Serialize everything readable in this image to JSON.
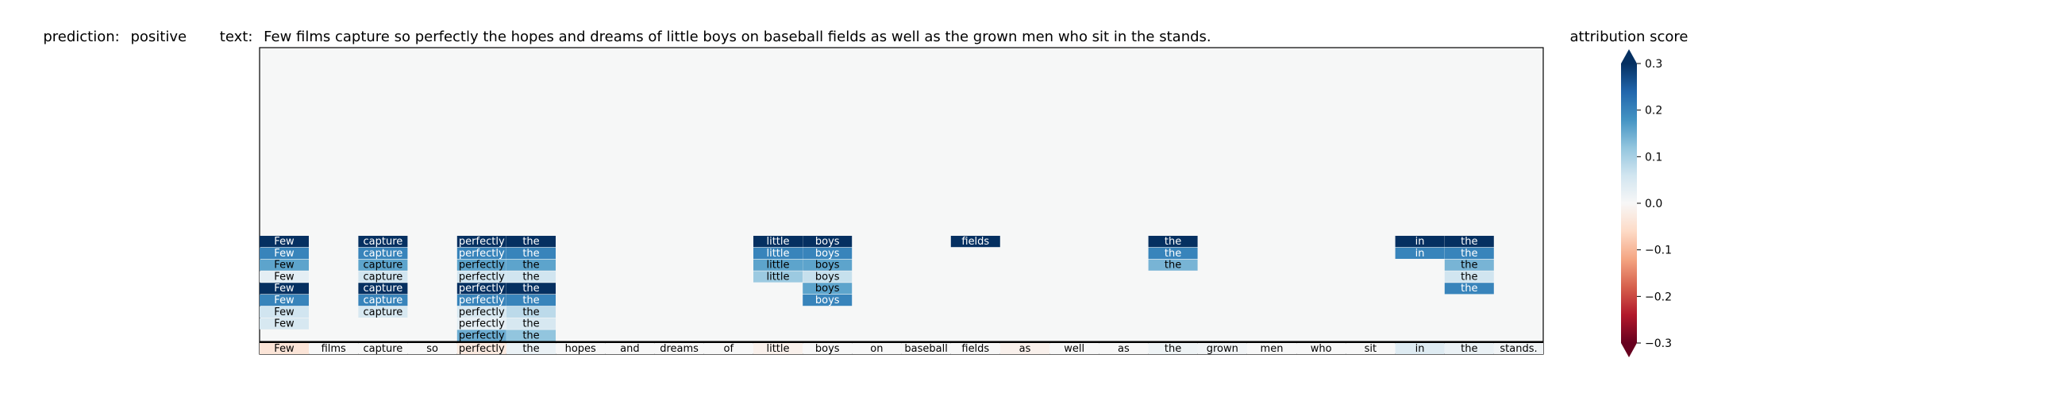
{
  "chart_data": {
    "type": "heatmap",
    "title": {
      "prediction_label": "prediction:",
      "prediction_value": "positive",
      "text_label": "text:",
      "text_value": "Few films capture so perfectly the hopes and dreams of little boys on baseball fields as well as the grown men who sit in the stands."
    },
    "tokens": [
      "Few",
      "films",
      "capture",
      "so",
      "perfectly",
      "the",
      "hopes",
      "and",
      "dreams",
      "of",
      "little",
      "boys",
      "on",
      "baseball",
      "fields",
      "as",
      "well",
      "as",
      "the",
      "grown",
      "men",
      "who",
      "sit",
      "in",
      "the",
      "stands."
    ],
    "bottom_row_scores": [
      -0.04,
      0,
      0,
      0,
      -0.03,
      0.02,
      0,
      0,
      0,
      0,
      -0.015,
      0,
      0,
      0,
      0,
      -0.015,
      0,
      0,
      0.015,
      0.01,
      0,
      0,
      0,
      0.04,
      0.02,
      0.01
    ],
    "stacked_rows": [
      {
        "token_index": 0,
        "scores": [
          0.3,
          0.2,
          0.16,
          0.03,
          0.3,
          0.2,
          0.06,
          0.05
        ]
      },
      {
        "token_index": 2,
        "scores": [
          0.3,
          0.2,
          0.16,
          0.06,
          0.3,
          0.2,
          0.05
        ]
      },
      {
        "token_index": 4,
        "scores": [
          0.3,
          0.2,
          0.16,
          0.06,
          0.3,
          0.2,
          0.05,
          0.03,
          0.15
        ]
      },
      {
        "token_index": 5,
        "scores": [
          0.3,
          0.2,
          0.16,
          0.06,
          0.3,
          0.2,
          0.08,
          0.05,
          0.12
        ]
      },
      {
        "token_index": 10,
        "scores": [
          0.3,
          0.2,
          0.16,
          0.11
        ]
      },
      {
        "token_index": 11,
        "scores": [
          0.3,
          0.2,
          0.16,
          0.07,
          0.16,
          0.2
        ]
      },
      {
        "token_index": 14,
        "scores": [
          0.31
        ]
      },
      {
        "token_index": 18,
        "scores": [
          0.3,
          0.2,
          0.14
        ]
      },
      {
        "token_index": 23,
        "scores": [
          0.3,
          0.2
        ]
      },
      {
        "token_index": 24,
        "scores": [
          0.3,
          0.2,
          0.14,
          0.06,
          0.2
        ]
      }
    ],
    "colorbar": {
      "label": "attribution score",
      "range": [
        -0.3,
        0.3
      ],
      "ticks": [
        0.3,
        0.2,
        0.1,
        0.0,
        -0.1,
        -0.2,
        -0.3
      ],
      "tick_labels": [
        "0.3",
        "0.2",
        "0.1",
        "0.0",
        "−0.1",
        "−0.2",
        "−0.3"
      ],
      "colormap": "RdBu",
      "extend": "both"
    },
    "colors": {
      "background_panel": "#f6f7f7",
      "cmap_stops": [
        "#67001f",
        "#b2182b",
        "#d6604d",
        "#f4a582",
        "#fddbc7",
        "#f7f7f7",
        "#d1e5f0",
        "#92c5de",
        "#4393c3",
        "#2166ac",
        "#053061"
      ]
    }
  }
}
